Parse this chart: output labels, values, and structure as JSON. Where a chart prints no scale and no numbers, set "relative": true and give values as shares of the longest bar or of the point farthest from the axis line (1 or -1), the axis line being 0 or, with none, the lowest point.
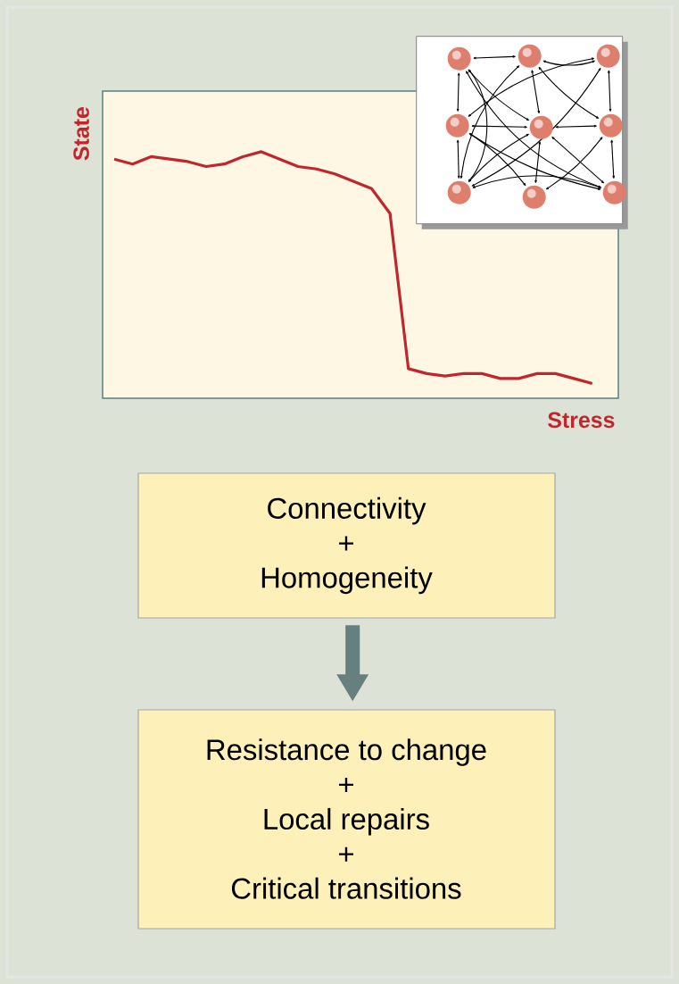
{
  "chart_data": {
    "type": "line",
    "relative": true,
    "color": "#c0272d",
    "xlabel": "Stress",
    "ylabel": "State",
    "categories": [
      null,
      null,
      null,
      null,
      null,
      null,
      null,
      null,
      null,
      null,
      null,
      null,
      null,
      null,
      null,
      null,
      null,
      null,
      null,
      null,
      null,
      null,
      null,
      null,
      null,
      null,
      null
    ],
    "values": [
      0.97,
      0.95,
      0.98,
      0.97,
      0.96,
      0.94,
      0.95,
      0.98,
      1,
      0.97,
      0.94,
      0.93,
      0.91,
      0.88,
      0.85,
      0.75,
      0.12,
      0.1,
      0.09,
      0.1,
      0.1,
      0.08,
      0.08,
      0.1,
      0.1,
      0.08,
      0.06
    ],
    "annotations": [
      "Connectivity",
      "+",
      "Homogeneity",
      "Resistance to change",
      "+",
      "Local repairs",
      "+",
      "Critical transitions"
    ]
  }
}
